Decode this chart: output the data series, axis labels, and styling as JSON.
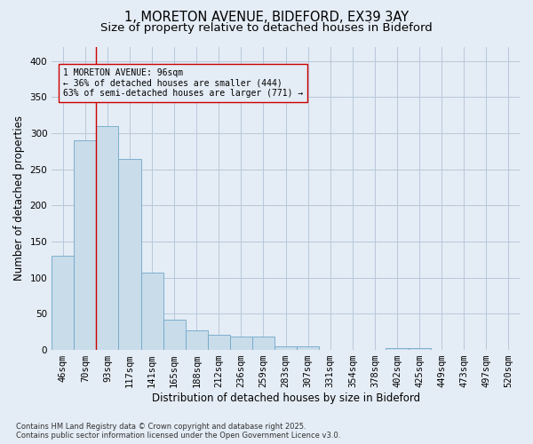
{
  "title_line1": "1, MORETON AVENUE, BIDEFORD, EX39 3AY",
  "title_line2": "Size of property relative to detached houses in Bideford",
  "xlabel": "Distribution of detached houses by size in Bideford",
  "ylabel": "Number of detached properties",
  "categories": [
    "46sqm",
    "70sqm",
    "93sqm",
    "117sqm",
    "141sqm",
    "165sqm",
    "188sqm",
    "212sqm",
    "236sqm",
    "259sqm",
    "283sqm",
    "307sqm",
    "331sqm",
    "354sqm",
    "378sqm",
    "402sqm",
    "425sqm",
    "449sqm",
    "473sqm",
    "497sqm",
    "520sqm"
  ],
  "values": [
    130,
    290,
    310,
    265,
    107,
    42,
    27,
    21,
    19,
    18,
    5,
    5,
    0,
    0,
    0,
    3,
    3,
    0,
    0,
    0,
    0
  ],
  "bar_color": "#c9dcea",
  "bar_edge_color": "#6fa8c8",
  "grid_color": "#b8c8da",
  "bg_color": "#e4ecf5",
  "vline_x_index": 2,
  "vline_color": "#cc0000",
  "annotation_text": "1 MORETON AVENUE: 96sqm\n← 36% of detached houses are smaller (444)\n63% of semi-detached houses are larger (771) →",
  "annotation_box_color": "#cc0000",
  "ylim": [
    0,
    420
  ],
  "yticks": [
    0,
    50,
    100,
    150,
    200,
    250,
    300,
    350,
    400
  ],
  "footnote": "Contains HM Land Registry data © Crown copyright and database right 2025.\nContains public sector information licensed under the Open Government Licence v3.0.",
  "title_fontsize": 10.5,
  "subtitle_fontsize": 9.5,
  "axis_label_fontsize": 8.5,
  "tick_fontsize": 7.5,
  "annotation_fontsize": 7.0,
  "footnote_fontsize": 6.0
}
